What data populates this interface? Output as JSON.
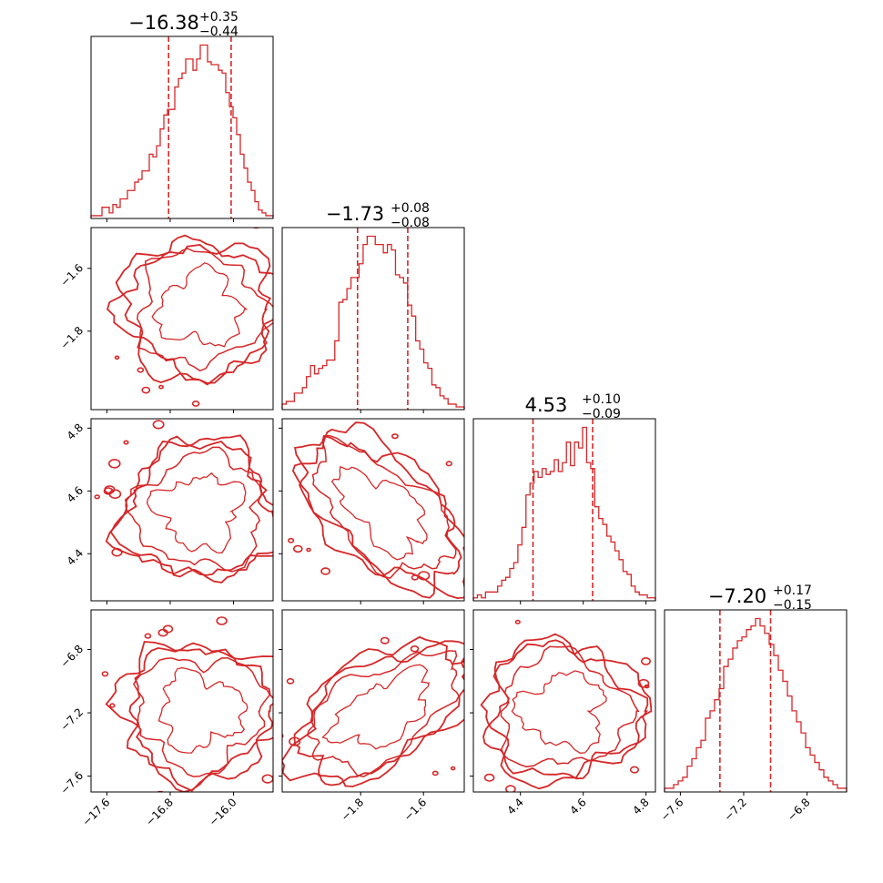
{
  "colors": {
    "line": "#d62728",
    "axis": "#000000",
    "background": "#ffffff"
  },
  "chart_data": {
    "type": "corner",
    "parameters": [
      {
        "range": [
          -17.8,
          -15.5
        ],
        "ticks": [
          "−17.6",
          "−16.8",
          "−16.0"
        ],
        "tick_values": [
          -17.6,
          -16.8,
          -16.0
        ],
        "title": {
          "value": "−16.38",
          "plus": "+0.35",
          "minus": "−0.44"
        },
        "quantiles": [
          -16.82,
          -16.03
        ],
        "hist": [
          1,
          1,
          1,
          4,
          4,
          2,
          5,
          4,
          7,
          7,
          10,
          10,
          13,
          14,
          17,
          17,
          23,
          22,
          26,
          32,
          37,
          39,
          39,
          47,
          50,
          52,
          57,
          57,
          53,
          57,
          62,
          62,
          56,
          55,
          55,
          53,
          52,
          45,
          40,
          36,
          30,
          23,
          18,
          13,
          10,
          6,
          3,
          2,
          1,
          1
        ]
      },
      {
        "range": [
          -2.05,
          -1.47
        ],
        "ticks": [
          "−1.8",
          "−1.6"
        ],
        "tick_values": [
          -1.8,
          -1.6
        ],
        "title": {
          "value": "−1.73",
          "plus": "+0.08",
          "minus": "−0.08"
        },
        "quantiles": [
          -1.81,
          -1.65
        ],
        "hist": [
          2,
          3,
          3,
          6,
          6,
          8,
          12,
          16,
          13,
          15,
          16,
          18,
          18,
          25,
          39,
          40,
          44,
          48,
          48,
          53,
          60,
          63,
          63,
          60,
          60,
          57,
          60,
          58,
          49,
          48,
          46,
          38,
          34,
          25,
          22,
          17,
          15,
          9,
          8,
          5,
          4,
          2,
          2,
          1,
          1
        ]
      },
      {
        "range": [
          4.25,
          4.83
        ],
        "ticks": [
          "4.4",
          "4.6",
          "4.8"
        ],
        "tick_values": [
          4.4,
          4.6,
          4.8
        ],
        "title": {
          "value": "4.53",
          "plus": "+0.10",
          "minus": "−0.09"
        },
        "quantiles": [
          4.44,
          4.63
        ],
        "hist": [
          1,
          2,
          1,
          3,
          3,
          3,
          5,
          7,
          8,
          11,
          13,
          19,
          25,
          36,
          40,
          44,
          42,
          45,
          43,
          44,
          48,
          44,
          47,
          54,
          46,
          54,
          52,
          59,
          47,
          45,
          32,
          28,
          26,
          22,
          20,
          17,
          14,
          10,
          9,
          5,
          3,
          2,
          2,
          1,
          1
        ]
      },
      {
        "range": [
          -7.7,
          -6.55
        ],
        "ticks": [
          "−7.6",
          "−7.2",
          "−6.8"
        ],
        "tick_values": [
          -7.6,
          -7.2,
          -6.8
        ],
        "title": {
          "value": "−7.20",
          "plus": "+0.17",
          "minus": "−0.15"
        },
        "quantiles": [
          -7.35,
          -7.03
        ],
        "hist": [
          1,
          1,
          2,
          3,
          4,
          7,
          9,
          12,
          14,
          20,
          22,
          25,
          28,
          34,
          36,
          39,
          41,
          42,
          44,
          45,
          47,
          45,
          43,
          40,
          37,
          33,
          30,
          26,
          22,
          19,
          16,
          12,
          10,
          8,
          6,
          4,
          3,
          2,
          1,
          1
        ]
      }
    ]
  }
}
